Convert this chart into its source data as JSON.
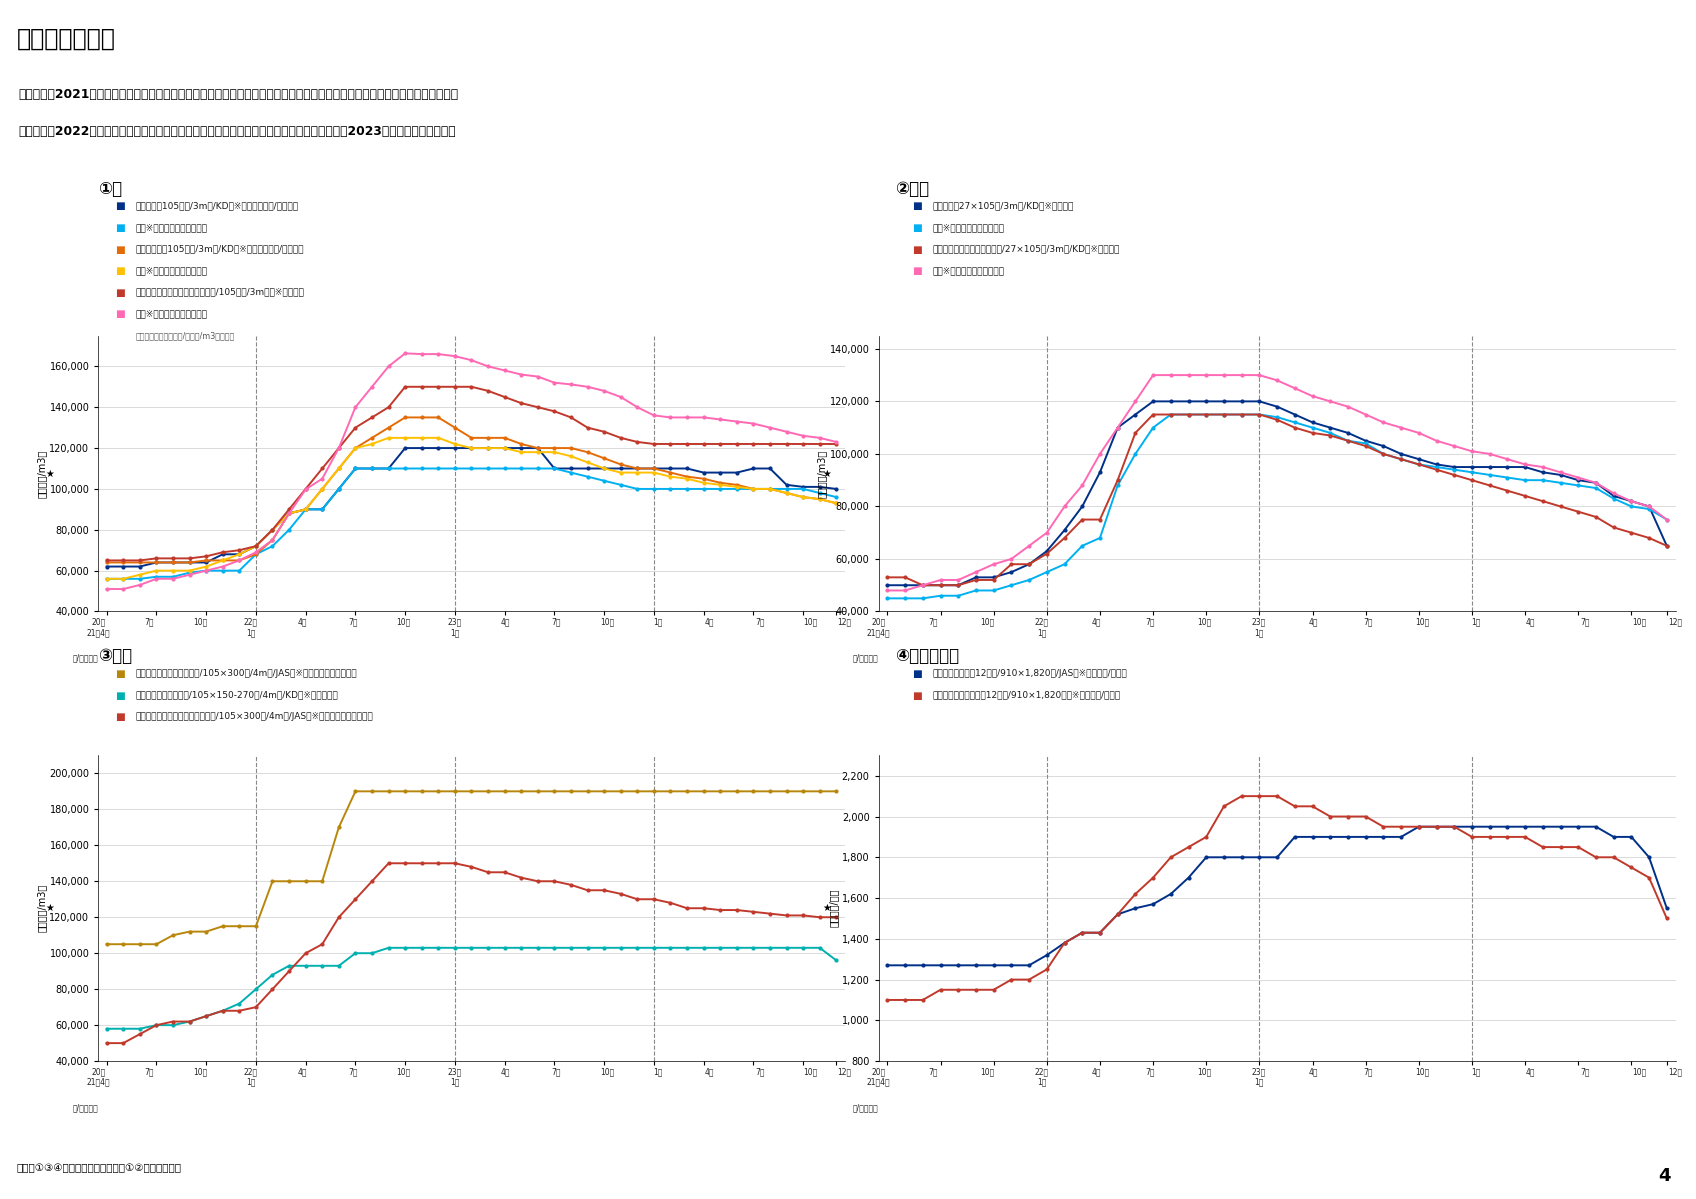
{
  "title_main": "（２）製品価格",
  "subtitle_line1": "・令和３（2021）年は、世界的な木材需要の高まり等により輸入材製品価格が高騰し、代替需要により国産材製品価格も上昇。",
  "subtitle_line2": "　令和４（2022）年以降、柱、間柱、平角の価格は下落傾向。構造用合板の価格は、令和５（2023）年以降、下落傾向。",
  "footer": "資料：①③④木材建材ウイクリー、①②日刊木材新聞",
  "page_num": "4",
  "header_bar_color": "#7dc832",
  "subtitle_box_color": "#dff0b3",
  "subtitle_border_color": "#7dc832",
  "note_chart1": "（集成管柱の価格は円/本を円/m3に換算）",
  "colors_chart1": [
    "#003087",
    "#00b0f0",
    "#e36c09",
    "#ffc000",
    "#c0392b",
    "#ff69b4"
  ],
  "colors_chart2": [
    "#003087",
    "#00b0f0",
    "#c0392b",
    "#ff69b4"
  ],
  "colors_chart3": [
    "#b8860b",
    "#00b0b0",
    "#c0392b"
  ],
  "colors_chart4": [
    "#003087",
    "#c0392b"
  ],
  "chart1_ylim": [
    40000,
    175000
  ],
  "chart1_yticks": [
    40000,
    60000,
    80000,
    100000,
    120000,
    140000,
    160000
  ],
  "chart2_ylim": [
    40000,
    145000
  ],
  "chart2_yticks": [
    40000,
    60000,
    80000,
    100000,
    120000,
    140000
  ],
  "chart3_ylim": [
    40000,
    210000
  ],
  "chart3_yticks": [
    40000,
    60000,
    80000,
    100000,
    120000,
    140000,
    160000,
    180000,
    200000
  ],
  "chart4_ylim": [
    800,
    2300
  ],
  "chart4_yticks": [
    800,
    1000,
    1200,
    1400,
    1600,
    1800,
    2000,
    2200
  ]
}
